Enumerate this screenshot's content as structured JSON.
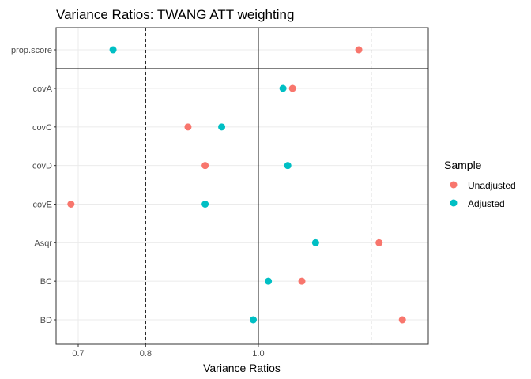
{
  "chart_data": {
    "type": "scatter",
    "title": "Variance Ratios: TWANG ATT weighting",
    "xlabel": "Variance Ratios",
    "ylabel": "",
    "scale": "log",
    "xlim": [
      0.67,
      1.4
    ],
    "xticks": [
      0.7,
      0.8,
      1.0
    ],
    "tick_labels": [
      "0.7",
      "0.8",
      "1.0"
    ],
    "reference_lines": [
      {
        "x": 1.0,
        "style": "solid"
      },
      {
        "x": 0.8,
        "style": "dashed"
      },
      {
        "x": 1.25,
        "style": "dashed"
      }
    ],
    "grid": true,
    "legend_position": "right",
    "categories": [
      "prop.score",
      "covA",
      "covC",
      "covD",
      "covE",
      "Asqr",
      "BC",
      "BD"
    ],
    "separated_category": "prop.score",
    "legend_title": "Sample",
    "series": [
      {
        "name": "Unadjusted",
        "color": "#F8766D",
        "values": [
          1.22,
          1.07,
          0.87,
          0.9,
          0.69,
          1.27,
          1.09,
          1.33
        ]
      },
      {
        "name": "Adjusted",
        "color": "#00BFC4",
        "values": [
          0.75,
          1.05,
          0.93,
          1.06,
          0.9,
          1.12,
          1.02,
          0.99
        ]
      }
    ]
  }
}
